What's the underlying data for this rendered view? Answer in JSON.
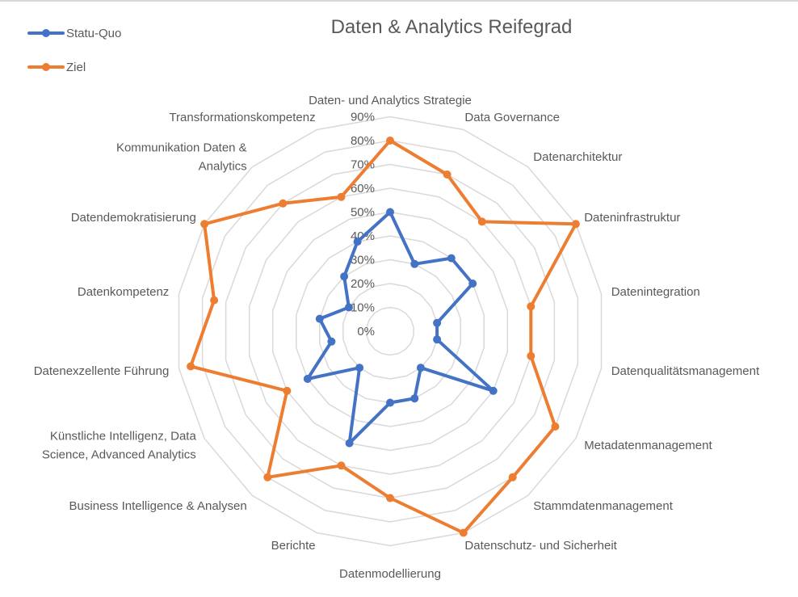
{
  "chart_data": {
    "type": "radar",
    "title": "Daten & Analytics Reifegrad",
    "categories": [
      "Daten- und Analytics Strategie",
      "Data Governance",
      "Datenarchitektur",
      "Dateninfrastruktur",
      "Datenintegration",
      "Datenqualitätsmanagement",
      "Metadatenmanagement",
      "Stammdatenmanagement",
      "Datenschutz- und Sicherheit",
      "Datenmodellierung",
      "Berichte",
      "Business Intelligence & Analysen",
      "Künstliche Intelligenz, Data Science, Advanced Analytics",
      "Datenexzellente Führung",
      "Datenkompetenz",
      "Datendemokratisierung",
      "Kommunikation Daten & Analytics",
      "Transformationskompetenz"
    ],
    "series": [
      {
        "name": "Statu-Quo",
        "color": "#4472C4",
        "values": [
          50,
          30,
          40,
          40,
          20,
          20,
          50,
          20,
          30,
          30,
          50,
          20,
          40,
          25,
          30,
          20,
          30,
          40
        ]
      },
      {
        "name": "Ziel",
        "color": "#ED7D31",
        "values": [
          80,
          70,
          60,
          90,
          60,
          60,
          80,
          80,
          90,
          70,
          60,
          80,
          50,
          85,
          75,
          90,
          70,
          60
        ]
      }
    ],
    "rlim": [
      0,
      90
    ],
    "rticks": [
      "0%",
      "10%",
      "20%",
      "30%",
      "40%",
      "50%",
      "60%",
      "70%",
      "80%",
      "90%"
    ],
    "grid": true,
    "legend_position": "top-left"
  },
  "title": "Daten & Analytics Reifegrad",
  "legend": [
    {
      "label": "Statu-Quo",
      "color": "#4472C4"
    },
    {
      "label": "Ziel",
      "color": "#ED7D31"
    }
  ],
  "label_lines": [
    [
      "Daten- und Analytics Strategie"
    ],
    [
      "Data Governance"
    ],
    [
      "Datenarchitektur"
    ],
    [
      "Dateninfrastruktur"
    ],
    [
      "Datenintegration"
    ],
    [
      "Datenqualitätsmanagement"
    ],
    [
      "Metadatenmanagement"
    ],
    [
      "Stammdatenmanagement"
    ],
    [
      "Datenschutz- und Sicherheit"
    ],
    [
      "Datenmodellierung"
    ],
    [
      "Berichte"
    ],
    [
      "Business Intelligence & Analysen"
    ],
    [
      "Künstliche Intelligenz, Data",
      "Science, Advanced Analytics"
    ],
    [
      "Datenexzellente Führung"
    ],
    [
      "Datenkompetenz"
    ],
    [
      "Datendemokratisierung"
    ],
    [
      "Kommunikation Daten &",
      "Analytics"
    ],
    [
      "Transformationskompetenz"
    ]
  ]
}
